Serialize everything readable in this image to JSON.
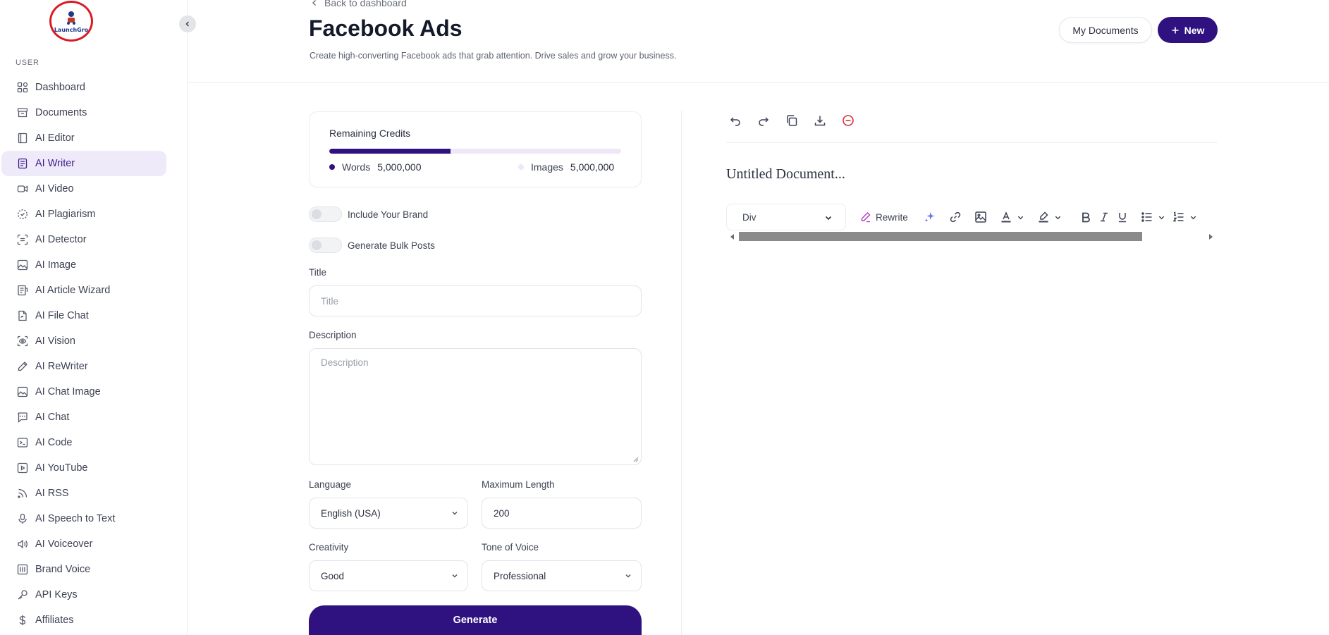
{
  "sidebar": {
    "logo_text": "LaunchGro",
    "section_label": "USER",
    "items": [
      {
        "label": "Dashboard",
        "icon": "grid-icon"
      },
      {
        "label": "Documents",
        "icon": "archive-icon"
      },
      {
        "label": "AI Editor",
        "icon": "book-icon"
      },
      {
        "label": "AI Writer",
        "icon": "document-icon",
        "active": true
      },
      {
        "label": "AI Video",
        "icon": "video-icon"
      },
      {
        "label": "AI Plagiarism",
        "icon": "dashed-circle-check-icon"
      },
      {
        "label": "AI Detector",
        "icon": "scan-icon"
      },
      {
        "label": "AI Image",
        "icon": "image-icon"
      },
      {
        "label": "AI Article Wizard",
        "icon": "article-icon"
      },
      {
        "label": "AI File Chat",
        "icon": "file-icon"
      },
      {
        "label": "AI Vision",
        "icon": "eye-scan-icon"
      },
      {
        "label": "AI ReWriter",
        "icon": "pen-icon"
      },
      {
        "label": "AI Chat Image",
        "icon": "image-icon"
      },
      {
        "label": "AI Chat",
        "icon": "chat-icon"
      },
      {
        "label": "AI Code",
        "icon": "terminal-icon"
      },
      {
        "label": "AI YouTube",
        "icon": "play-icon"
      },
      {
        "label": "AI RSS",
        "icon": "rss-icon"
      },
      {
        "label": "AI Speech to Text",
        "icon": "mic-icon"
      },
      {
        "label": "AI Voiceover",
        "icon": "speaker-icon"
      },
      {
        "label": "Brand Voice",
        "icon": "brand-icon"
      },
      {
        "label": "API Keys",
        "icon": "key-icon"
      },
      {
        "label": "Affiliates",
        "icon": "dollar-icon"
      }
    ]
  },
  "header": {
    "back_label": "Back to dashboard",
    "title": "Facebook Ads",
    "subtitle": "Create high-converting Facebook ads that grab attention. Drive sales and grow your business.",
    "my_documents_label": "My Documents",
    "new_label": "New"
  },
  "credits": {
    "title": "Remaining Credits",
    "words_label": "Words",
    "words_value": "5,000,000",
    "images_label": "Images",
    "images_value": "5,000,000",
    "words_fraction": 0.415,
    "words_color": "#2f1280",
    "images_color": "#efe6f8"
  },
  "form": {
    "include_brand_label": "Include Your Brand",
    "include_brand_on": false,
    "bulk_posts_label": "Generate Bulk Posts",
    "bulk_posts_on": false,
    "title_label": "Title",
    "title_placeholder": "Title",
    "description_label": "Description",
    "description_placeholder": "Description",
    "language_label": "Language",
    "language_value": "English (USA)",
    "max_length_label": "Maximum Length",
    "max_length_value": "200",
    "creativity_label": "Creativity",
    "creativity_value": "Good",
    "tone_label": "Tone of Voice",
    "tone_value": "Professional",
    "generate_label": "Generate"
  },
  "editor": {
    "doc_title": "Untitled Document...",
    "format_value": "Div",
    "rewrite_label": "Rewrite"
  },
  "colors": {
    "accent": "#2f1280",
    "active_nav_bg": "#efeaf9",
    "danger": "#d9303c"
  }
}
